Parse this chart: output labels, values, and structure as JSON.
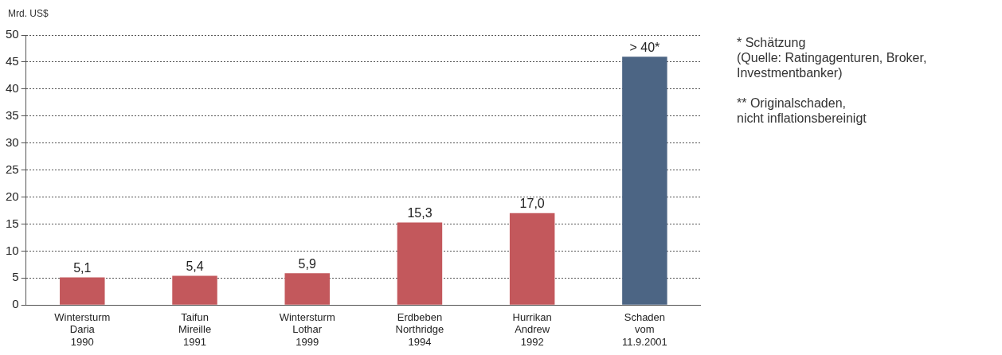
{
  "chart_data": {
    "type": "bar",
    "ylabel": "Mrd. US$",
    "categories": [
      "Wintersturm\nDaria\n1990",
      "Taifun\nMireille\n1991",
      "Wintersturm\nLothar\n1999",
      "Erdbeben\nNorthridge\n1994",
      "Hurrikan\nAndrew\n1992",
      "Schaden\nvom\n11.9.2001"
    ],
    "values": [
      5.1,
      5.4,
      5.9,
      15.3,
      17.0,
      46
    ],
    "value_labels": [
      "5,1",
      "5,4",
      "5,9",
      "15,3",
      "17,0",
      "> 40*"
    ],
    "colors": [
      "#c3585c",
      "#c3585c",
      "#c3585c",
      "#c3585c",
      "#c3585c",
      "#4c6584"
    ],
    "ylim": [
      0,
      50
    ],
    "yticks": [
      0,
      5,
      10,
      15,
      20,
      25,
      30,
      35,
      40,
      45,
      50
    ],
    "grid": "y",
    "legend": false,
    "annotations": [
      "* Schätzung\n(Quelle: Ratingagenturen, Broker,\nInvestmentbanker)",
      "** Originalschaden,\nnicht inflationsbereinigt"
    ]
  }
}
